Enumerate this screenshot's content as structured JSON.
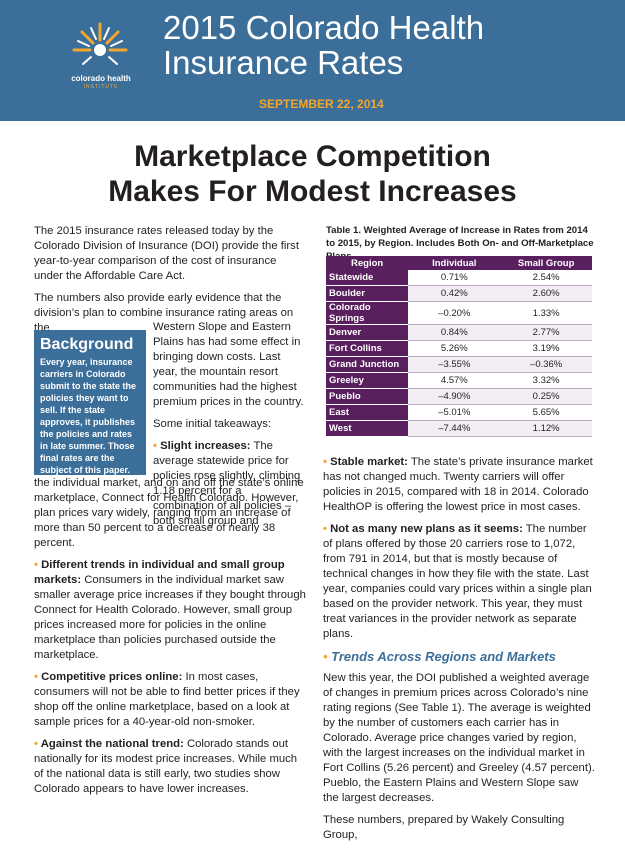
{
  "header": {
    "title_line1": "2015 Colorado Health",
    "title_line2": "Insurance Rates",
    "date": "SEPTEMBER 22, 2014",
    "logo_line1": "colorado health",
    "logo_line2": "INSTITUTE"
  },
  "headline": {
    "line1": "Marketplace Competition",
    "line2": "Makes For Modest Increases"
  },
  "intro": {
    "p1": "The 2015 insurance rates released today by the Colorado Division of Insurance (DOI) provide the first year-to-year comparison of the cost of insurance under the Affordable Care Act.",
    "p2": "The numbers also provide early evidence that the division’s plan to combine insurance rating areas on the"
  },
  "wrap": {
    "p1": "Western Slope and Eastern Plains has had some effect in bringing down costs. Last year, the mountain resort communities had the highest premium prices in the country.",
    "p2": "Some initial takeaways:",
    "slight_label": "Slight increases:",
    "slight_text": "The average statewide price for policies rose slightly, climbing 1.18 percent for a combination of all policies – both small group and"
  },
  "background_box": {
    "title": "Background",
    "text": "Every year, insurance carriers in Colorado submit to the state the policies they want to sell. If the state approves, it publishes the policies and rates in late summer. Those final rates are the subject of this paper."
  },
  "left_cont": {
    "slight_cont": "the individual market, and on and off the state’s online marketplace, Connect for Health Colorado. However, plan prices vary widely, ranging from an increase of more than 50 percent to a decrease of nearly 38 percent.",
    "trends_label": "Different trends in individual and small group markets:",
    "trends_text": "Consumers in the individual market saw smaller average price increases if they bought through Connect for Health Colorado. However, small group prices increased more for policies in the online marketplace than policies purchased outside the marketplace.",
    "competitive_label": "Competitive prices online:",
    "competitive_text": "In most cases, consumers will not be able to find better prices if they shop off the online marketplace, based on a look at sample prices for a 40-year-old non-smoker.",
    "national_label": "Against the national trend:",
    "national_text": "Colorado stands out nationally for its modest price increases. While much of the national data is still early, two studies show Colorado appears to have lower increases."
  },
  "table": {
    "caption": "Table 1. Weighted Average of Increase in Rates from 2014 to 2015, by Region. Includes Both On- and Off-Marketplace Plans.",
    "headers": [
      "Region",
      "Individual",
      "Small Group"
    ],
    "rows": [
      [
        "Statewide",
        "0.71%",
        "2.54%"
      ],
      [
        "Boulder",
        "0.42%",
        "2.60%"
      ],
      [
        "Colorado Springs",
        "–0.20%",
        "1.33%"
      ],
      [
        "Denver",
        "0.84%",
        "2.77%"
      ],
      [
        "Fort Collins",
        "5.26%",
        "3.19%"
      ],
      [
        "Grand Junction",
        "–3.55%",
        "–0.36%"
      ],
      [
        "Greeley",
        "4.57%",
        "3.32%"
      ],
      [
        "Pueblo",
        "–4.90%",
        "0.25%"
      ],
      [
        "East",
        "–5.01%",
        "5.65%"
      ],
      [
        "West",
        "–7.44%",
        "1.12%"
      ]
    ]
  },
  "right": {
    "stable_label": "Stable market:",
    "stable_text": "The state’s private insurance market has not changed much. Twenty carriers will offer policies in 2015, compared with 18 in 2014. Colorado HealthOP is offering the lowest price in most cases.",
    "notmany_label": "Not as many new plans as it seems:",
    "notmany_text": "The number of plans offered by those 20 carriers rose to 1,072, from 791 in 2014, but that is mostly because of technical changes in how they file with the state. Last year, companies could vary prices within a single plan based on the provider network. This year, they must treat variances in the provider network as separate plans.",
    "section_title": "Trends Across Regions and Markets",
    "p1": "New this year, the DOI published a weighted average of changes in premium prices across Colorado’s nine rating regions (See Table 1). The average is weighted by the number of customers each carrier has in Colorado. Average price changes varied by region, with the largest increases on the individual market in Fort Collins (5.26 percent) and Greeley (4.57 percent). Pueblo, the Eastern Plains and Western Slope saw the largest decreases.",
    "p2": "These numbers, prepared by Wakely Consulting Group,"
  },
  "colors": {
    "header_blue": "#3b6e99",
    "accent_orange": "#f4a52c",
    "table_purple": "#5a1f5f"
  }
}
